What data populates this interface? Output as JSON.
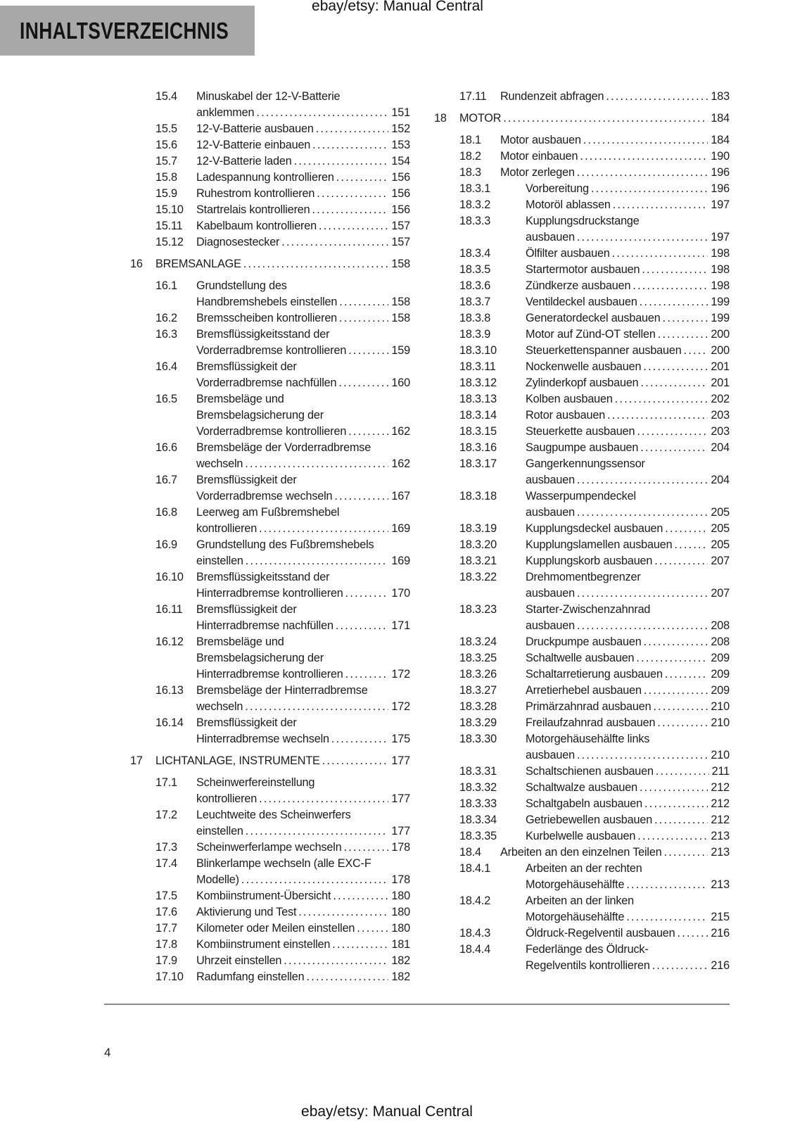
{
  "header": {
    "title": "INHALTSVERZEICHNIS",
    "watermark": "ebay/etsy: Manual Central"
  },
  "footer": {
    "page_number": "4",
    "watermark": "ebay/etsy: Manual Central"
  },
  "colors": {
    "title_box_bg": "#a9a9a9",
    "text": "#1c1c1c",
    "divider": "#8a8a8a"
  },
  "toc": {
    "left_column": [
      {
        "level": 2,
        "num": "15.4",
        "lines": [
          "Minuskabel der 12-V-Batterie",
          "anklemmen"
        ],
        "page": "151"
      },
      {
        "level": 2,
        "num": "15.5",
        "lines": [
          "12-V-Batterie ausbauen"
        ],
        "page": "152"
      },
      {
        "level": 2,
        "num": "15.6",
        "lines": [
          "12-V-Batterie einbauen"
        ],
        "page": "153"
      },
      {
        "level": 2,
        "num": "15.7",
        "lines": [
          "12-V-Batterie laden"
        ],
        "page": "154"
      },
      {
        "level": 2,
        "num": "15.8",
        "lines": [
          "Ladespannung kontrollieren"
        ],
        "page": "156"
      },
      {
        "level": 2,
        "num": "15.9",
        "lines": [
          "Ruhestrom kontrollieren"
        ],
        "page": "156"
      },
      {
        "level": 2,
        "num": "15.10",
        "lines": [
          "Startrelais kontrollieren"
        ],
        "page": "156"
      },
      {
        "level": 2,
        "num": "15.11",
        "lines": [
          "Kabelbaum kontrollieren"
        ],
        "page": "157"
      },
      {
        "level": 2,
        "num": "15.12",
        "lines": [
          "Diagnosestecker"
        ],
        "page": "157"
      },
      {
        "level": 1,
        "num": "16",
        "lines": [
          "BREMSANLAGE"
        ],
        "page": "158"
      },
      {
        "level": 2,
        "num": "16.1",
        "lines": [
          "Grundstellung des",
          "Handbremshebels einstellen"
        ],
        "page": "158"
      },
      {
        "level": 2,
        "num": "16.2",
        "lines": [
          "Bremsscheiben kontrollieren"
        ],
        "page": "158"
      },
      {
        "level": 2,
        "num": "16.3",
        "lines": [
          "Bremsflüssigkeitsstand der",
          "Vorderradbremse kontrollieren"
        ],
        "page": "159"
      },
      {
        "level": 2,
        "num": "16.4",
        "lines": [
          "Bremsflüssigkeit der",
          "Vorderradbremse nachfüllen"
        ],
        "page": "160"
      },
      {
        "level": 2,
        "num": "16.5",
        "lines": [
          "Bremsbeläge und",
          "Bremsbelagsicherung der",
          "Vorderradbremse kontrollieren"
        ],
        "page": "162"
      },
      {
        "level": 2,
        "num": "16.6",
        "lines": [
          "Bremsbeläge der Vorderradbremse",
          "wechseln"
        ],
        "page": "162"
      },
      {
        "level": 2,
        "num": "16.7",
        "lines": [
          "Bremsflüssigkeit der",
          "Vorderradbremse wechseln"
        ],
        "page": "167"
      },
      {
        "level": 2,
        "num": "16.8",
        "lines": [
          "Leerweg am Fußbremshebel",
          "kontrollieren"
        ],
        "page": "169"
      },
      {
        "level": 2,
        "num": "16.9",
        "lines": [
          "Grundstellung des Fußbremshebels",
          "einstellen"
        ],
        "page": "169"
      },
      {
        "level": 2,
        "num": "16.10",
        "lines": [
          "Bremsflüssigkeitsstand der",
          "Hinterradbremse kontrollieren"
        ],
        "page": "170"
      },
      {
        "level": 2,
        "num": "16.11",
        "lines": [
          "Bremsflüssigkeit der",
          "Hinterradbremse nachfüllen"
        ],
        "page": "171"
      },
      {
        "level": 2,
        "num": "16.12",
        "lines": [
          "Bremsbeläge und",
          "Bremsbelagsicherung der",
          "Hinterradbremse kontrollieren"
        ],
        "page": "172"
      },
      {
        "level": 2,
        "num": "16.13",
        "lines": [
          "Bremsbeläge der Hinterradbremse",
          "wechseln"
        ],
        "page": "172"
      },
      {
        "level": 2,
        "num": "16.14",
        "lines": [
          "Bremsflüssigkeit der",
          "Hinterradbremse wechseln"
        ],
        "page": "175"
      },
      {
        "level": 1,
        "num": "17",
        "lines": [
          "LICHTANLAGE, INSTRUMENTE"
        ],
        "page": "177"
      },
      {
        "level": 2,
        "num": "17.1",
        "lines": [
          "Scheinwerfereinstellung",
          "kontrollieren"
        ],
        "page": "177"
      },
      {
        "level": 2,
        "num": "17.2",
        "lines": [
          "Leuchtweite des Scheinwerfers",
          "einstellen"
        ],
        "page": "177"
      },
      {
        "level": 2,
        "num": "17.3",
        "lines": [
          "Scheinwerferlampe wechseln"
        ],
        "page": "178"
      },
      {
        "level": 2,
        "num": "17.4",
        "lines": [
          "Blinkerlampe wechseln (alle EXC-F",
          "Modelle)"
        ],
        "page": "178"
      },
      {
        "level": 2,
        "num": "17.5",
        "lines": [
          "Kombiinstrument-Übersicht"
        ],
        "page": "180"
      },
      {
        "level": 2,
        "num": "17.6",
        "lines": [
          "Aktivierung und Test"
        ],
        "page": "180"
      },
      {
        "level": 2,
        "num": "17.7",
        "lines": [
          "Kilometer oder Meilen einstellen"
        ],
        "page": "180"
      },
      {
        "level": 2,
        "num": "17.8",
        "lines": [
          "Kombiinstrument einstellen"
        ],
        "page": "181"
      },
      {
        "level": 2,
        "num": "17.9",
        "lines": [
          "Uhrzeit einstellen"
        ],
        "page": "182"
      },
      {
        "level": 2,
        "num": "17.10",
        "lines": [
          "Radumfang einstellen"
        ],
        "page": "182"
      }
    ],
    "right_column": [
      {
        "level": 2,
        "num": "17.11",
        "lines": [
          "Rundenzeit abfragen"
        ],
        "page": "183"
      },
      {
        "level": 1,
        "num": "18",
        "lines": [
          "MOTOR"
        ],
        "page": "184"
      },
      {
        "level": 2,
        "num": "18.1",
        "lines": [
          "Motor ausbauen"
        ],
        "page": "184"
      },
      {
        "level": 2,
        "num": "18.2",
        "lines": [
          "Motor einbauen"
        ],
        "page": "190"
      },
      {
        "level": 2,
        "num": "18.3",
        "lines": [
          "Motor zerlegen"
        ],
        "page": "196"
      },
      {
        "level": 3,
        "num": "18.3.1",
        "lines": [
          "Vorbereitung"
        ],
        "page": "196"
      },
      {
        "level": 3,
        "num": "18.3.2",
        "lines": [
          "Motoröl ablassen"
        ],
        "page": "197"
      },
      {
        "level": 3,
        "num": "18.3.3",
        "lines": [
          "Kupplungsdruckstange",
          "ausbauen"
        ],
        "page": "197"
      },
      {
        "level": 3,
        "num": "18.3.4",
        "lines": [
          "Ölfilter ausbauen"
        ],
        "page": "198"
      },
      {
        "level": 3,
        "num": "18.3.5",
        "lines": [
          "Startermotor ausbauen"
        ],
        "page": "198"
      },
      {
        "level": 3,
        "num": "18.3.6",
        "lines": [
          "Zündkerze ausbauen"
        ],
        "page": "198"
      },
      {
        "level": 3,
        "num": "18.3.7",
        "lines": [
          "Ventildeckel ausbauen"
        ],
        "page": "199"
      },
      {
        "level": 3,
        "num": "18.3.8",
        "lines": [
          "Generatordeckel ausbauen"
        ],
        "page": "199"
      },
      {
        "level": 3,
        "num": "18.3.9",
        "lines": [
          "Motor auf Zünd-OT stellen"
        ],
        "page": "200"
      },
      {
        "level": 3,
        "num": "18.3.10",
        "lines": [
          "Steuerkettenspanner ausbauen"
        ],
        "page": "200"
      },
      {
        "level": 3,
        "num": "18.3.11",
        "lines": [
          "Nockenwelle ausbauen"
        ],
        "page": "201"
      },
      {
        "level": 3,
        "num": "18.3.12",
        "lines": [
          "Zylinderkopf ausbauen"
        ],
        "page": "201"
      },
      {
        "level": 3,
        "num": "18.3.13",
        "lines": [
          "Kolben ausbauen"
        ],
        "page": "202"
      },
      {
        "level": 3,
        "num": "18.3.14",
        "lines": [
          "Rotor ausbauen"
        ],
        "page": "203"
      },
      {
        "level": 3,
        "num": "18.3.15",
        "lines": [
          "Steuerkette ausbauen"
        ],
        "page": "203"
      },
      {
        "level": 3,
        "num": "18.3.16",
        "lines": [
          "Saugpumpe ausbauen"
        ],
        "page": "204"
      },
      {
        "level": 3,
        "num": "18.3.17",
        "lines": [
          "Gangerkennungssensor",
          "ausbauen"
        ],
        "page": "204"
      },
      {
        "level": 3,
        "num": "18.3.18",
        "lines": [
          "Wasserpumpendeckel",
          "ausbauen"
        ],
        "page": "205"
      },
      {
        "level": 3,
        "num": "18.3.19",
        "lines": [
          "Kupplungsdeckel ausbauen"
        ],
        "page": "205"
      },
      {
        "level": 3,
        "num": "18.3.20",
        "lines": [
          "Kupplungslamellen ausbauen"
        ],
        "page": "205"
      },
      {
        "level": 3,
        "num": "18.3.21",
        "lines": [
          "Kupplungskorb ausbauen"
        ],
        "page": "207"
      },
      {
        "level": 3,
        "num": "18.3.22",
        "lines": [
          "Drehmomentbegrenzer",
          "ausbauen"
        ],
        "page": "207"
      },
      {
        "level": 3,
        "num": "18.3.23",
        "lines": [
          "Starter-Zwischenzahnrad",
          "ausbauen"
        ],
        "page": "208"
      },
      {
        "level": 3,
        "num": "18.3.24",
        "lines": [
          "Druckpumpe ausbauen"
        ],
        "page": "208"
      },
      {
        "level": 3,
        "num": "18.3.25",
        "lines": [
          "Schaltwelle ausbauen"
        ],
        "page": "209"
      },
      {
        "level": 3,
        "num": "18.3.26",
        "lines": [
          "Schaltarretierung ausbauen"
        ],
        "page": "209"
      },
      {
        "level": 3,
        "num": "18.3.27",
        "lines": [
          "Arretierhebel ausbauen"
        ],
        "page": "209"
      },
      {
        "level": 3,
        "num": "18.3.28",
        "lines": [
          "Primärzahnrad ausbauen"
        ],
        "page": "210"
      },
      {
        "level": 3,
        "num": "18.3.29",
        "lines": [
          "Freilaufzahnrad ausbauen"
        ],
        "page": "210"
      },
      {
        "level": 3,
        "num": "18.3.30",
        "lines": [
          "Motorgehäusehälfte links",
          "ausbauen"
        ],
        "page": "210"
      },
      {
        "level": 3,
        "num": "18.3.31",
        "lines": [
          "Schaltschienen ausbauen"
        ],
        "page": "211"
      },
      {
        "level": 3,
        "num": "18.3.32",
        "lines": [
          "Schaltwalze ausbauen"
        ],
        "page": "212"
      },
      {
        "level": 3,
        "num": "18.3.33",
        "lines": [
          "Schaltgabeln ausbauen"
        ],
        "page": "212"
      },
      {
        "level": 3,
        "num": "18.3.34",
        "lines": [
          "Getriebewellen ausbauen"
        ],
        "page": "212"
      },
      {
        "level": 3,
        "num": "18.3.35",
        "lines": [
          "Kurbelwelle ausbauen"
        ],
        "page": "213"
      },
      {
        "level": 2,
        "num": "18.4",
        "lines": [
          "Arbeiten an den einzelnen Teilen"
        ],
        "page": "213"
      },
      {
        "level": 3,
        "num": "18.4.1",
        "lines": [
          "Arbeiten an der rechten",
          "Motorgehäusehälfte"
        ],
        "page": "213"
      },
      {
        "level": 3,
        "num": "18.4.2",
        "lines": [
          "Arbeiten an der linken",
          "Motorgehäusehälfte"
        ],
        "page": "215"
      },
      {
        "level": 3,
        "num": "18.4.3",
        "lines": [
          "Öldruck-Regelventil ausbauen"
        ],
        "page": "216"
      },
      {
        "level": 3,
        "num": "18.4.4",
        "lines": [
          "Federlänge des Öldruck-",
          "Regelventils kontrollieren"
        ],
        "page": "216"
      }
    ]
  }
}
